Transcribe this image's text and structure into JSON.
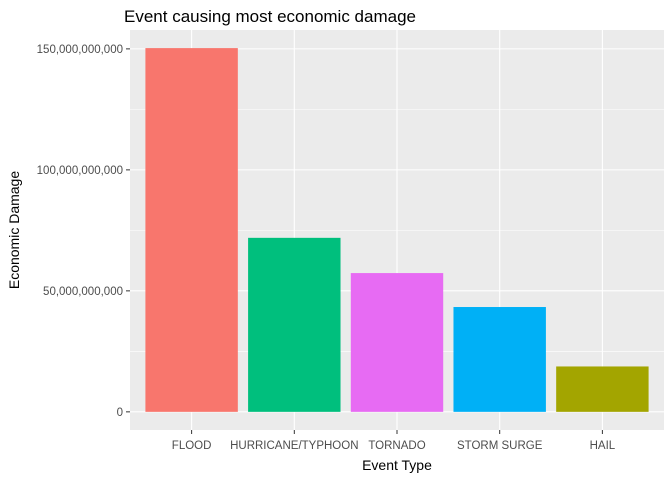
{
  "chart_data": {
    "type": "bar",
    "title": "Event causing most economic damage",
    "xlabel": "Event Type",
    "ylabel": "Economic Damage",
    "categories": [
      "FLOOD",
      "HURRICANE/TYPHOON",
      "TORNADO",
      "STORM SURGE",
      "HAIL"
    ],
    "values": [
      150319678257,
      71913712800,
      57352114049,
      43323541000,
      18758222016
    ],
    "colors": [
      "#F8766D",
      "#00BF7D",
      "#E76BF3",
      "#00B0F6",
      "#A3A500"
    ],
    "yticks": [
      0,
      50000000000,
      100000000000,
      150000000000
    ],
    "ytick_labels": [
      "0",
      "50,000,000,000",
      "100,000,000,000",
      "150,000,000,000"
    ],
    "ylim": [
      -7500000000,
      157800000000
    ],
    "grid": true,
    "legend": "none",
    "panel_background": "#EBEBEB",
    "gridline_color": "#FFFFFF"
  }
}
